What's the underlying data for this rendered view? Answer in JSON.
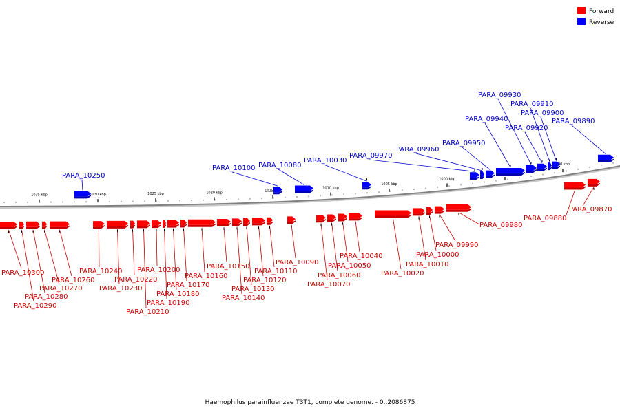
{
  "footer": "Haemophilus parainfluenzae T3T1, complete genome. - 0..2086875",
  "legend": {
    "forward": {
      "label": "Forward",
      "color": "#ff0000"
    },
    "reverse": {
      "label": "Reverse",
      "color": "#0000ff"
    }
  },
  "colors": {
    "forward_fill": "#ff0000",
    "forward_shade": "#c80000",
    "reverse_fill": "#0000ff",
    "reverse_shade": "#0000b4",
    "forward_label": "#c80000",
    "reverse_label": "#0000c8",
    "axis": "#808080"
  },
  "axis_ticks": [
    {
      "label": "1035 kbp",
      "kbp": 1035
    },
    {
      "label": "1030 kbp",
      "kbp": 1030
    },
    {
      "label": "1025 kbp",
      "kbp": 1025
    },
    {
      "label": "1020 kbp",
      "kbp": 1020
    },
    {
      "label": "1015 kbp",
      "kbp": 1015
    },
    {
      "label": "1010 kbp",
      "kbp": 1010
    },
    {
      "label": "1005 kbp",
      "kbp": 1005
    },
    {
      "label": "1000 kbp",
      "kbp": 1000
    },
    {
      "label": "995 kbp",
      "kbp": 995
    },
    {
      "label": "990 kbp",
      "kbp": 990
    }
  ],
  "genes": [
    {
      "name": "PARA_10300",
      "strand": "forward"
    },
    {
      "name": "PARA_10290",
      "strand": "forward"
    },
    {
      "name": "PARA_10280",
      "strand": "forward"
    },
    {
      "name": "PARA_10270",
      "strand": "forward"
    },
    {
      "name": "PARA_10260",
      "strand": "forward"
    },
    {
      "name": "PARA_10250",
      "strand": "reverse"
    },
    {
      "name": "PARA_10240",
      "strand": "forward"
    },
    {
      "name": "PARA_10230",
      "strand": "forward"
    },
    {
      "name": "PARA_10220",
      "strand": "forward"
    },
    {
      "name": "PARA_10210",
      "strand": "forward"
    },
    {
      "name": "PARA_10200",
      "strand": "forward"
    },
    {
      "name": "PARA_10190",
      "strand": "forward"
    },
    {
      "name": "PARA_10180",
      "strand": "forward"
    },
    {
      "name": "PARA_10170",
      "strand": "forward"
    },
    {
      "name": "PARA_10160",
      "strand": "forward"
    },
    {
      "name": "PARA_10150",
      "strand": "forward"
    },
    {
      "name": "PARA_10140",
      "strand": "forward"
    },
    {
      "name": "PARA_10130",
      "strand": "forward"
    },
    {
      "name": "PARA_10120",
      "strand": "forward"
    },
    {
      "name": "PARA_10110",
      "strand": "forward"
    },
    {
      "name": "PARA_10100",
      "strand": "reverse"
    },
    {
      "name": "PARA_10090",
      "strand": "forward"
    },
    {
      "name": "PARA_10080",
      "strand": "reverse"
    },
    {
      "name": "PARA_10070",
      "strand": "forward"
    },
    {
      "name": "PARA_10060",
      "strand": "forward"
    },
    {
      "name": "PARA_10050",
      "strand": "forward"
    },
    {
      "name": "PARA_10040",
      "strand": "forward"
    },
    {
      "name": "PARA_10030",
      "strand": "reverse"
    },
    {
      "name": "PARA_10020",
      "strand": "forward"
    },
    {
      "name": "PARA_10010",
      "strand": "forward"
    },
    {
      "name": "PARA_10000",
      "strand": "forward"
    },
    {
      "name": "PARA_09990",
      "strand": "forward"
    },
    {
      "name": "PARA_09980",
      "strand": "forward"
    },
    {
      "name": "PARA_09970",
      "strand": "reverse"
    },
    {
      "name": "PARA_09960",
      "strand": "reverse"
    },
    {
      "name": "PARA_09950",
      "strand": "reverse"
    },
    {
      "name": "PARA_09940",
      "strand": "reverse"
    },
    {
      "name": "PARA_09930",
      "strand": "reverse"
    },
    {
      "name": "PARA_09920",
      "strand": "reverse"
    },
    {
      "name": "PARA_09910",
      "strand": "reverse"
    },
    {
      "name": "PARA_09900",
      "strand": "reverse"
    },
    {
      "name": "PARA_09890",
      "strand": "reverse"
    },
    {
      "name": "PARA_09880",
      "strand": "forward"
    },
    {
      "name": "PARA_09870",
      "strand": "forward"
    }
  ]
}
